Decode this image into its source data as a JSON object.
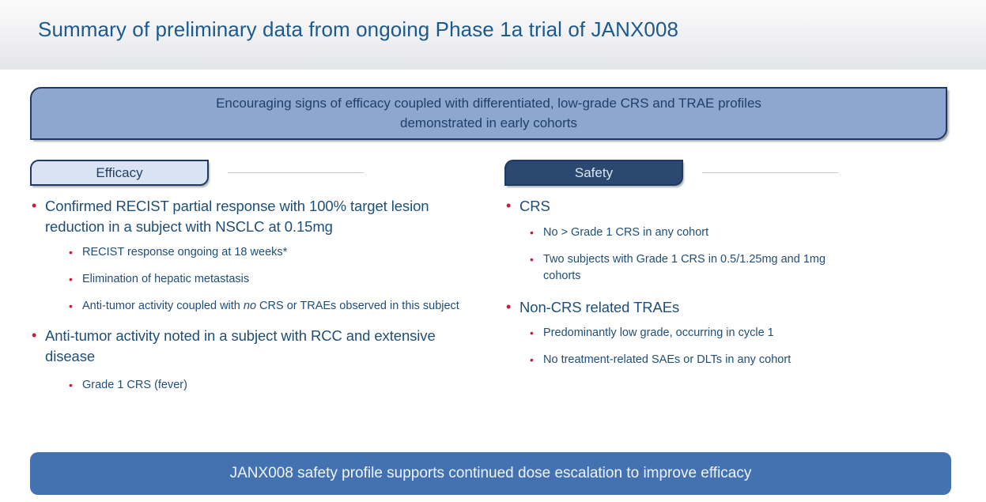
{
  "slide": {
    "title": "Summary of preliminary data from ongoing Phase 1a trial of JANX008",
    "highlight_banner": {
      "line1": "Encouraging signs of efficacy coupled with differentiated, low-grade CRS and TRAE profiles",
      "line2": "demonstrated in early cohorts"
    },
    "efficacy": {
      "header": "Efficacy",
      "items": [
        {
          "level": 1,
          "text": "Confirmed RECIST partial response with 100% target lesion reduction in a subject with NSCLC at 0.15mg"
        },
        {
          "level": 2,
          "text": "RECIST response ongoing at 18 weeks*"
        },
        {
          "level": 2,
          "text": "Elimination of hepatic metastasis"
        },
        {
          "level": 2,
          "text_prefix": "Anti-tumor activity coupled with ",
          "text_italic": "no",
          "text_suffix": " CRS or TRAEs observed in this subject"
        },
        {
          "level": 1,
          "text": "Anti-tumor activity noted in a subject with RCC and extensive disease"
        },
        {
          "level": 2,
          "text": "Grade 1 CRS (fever)"
        }
      ]
    },
    "safety": {
      "header": "Safety",
      "items": [
        {
          "level": 1,
          "text": "CRS"
        },
        {
          "level": 2,
          "text": "No > Grade 1 CRS in any cohort"
        },
        {
          "level": 2,
          "text": "Two subjects with Grade 1 CRS in 0.5/1.25mg and 1mg cohorts"
        },
        {
          "level": 1,
          "text": "Non-CRS related TRAEs"
        },
        {
          "level": 2,
          "text": "Predominantly low grade, occurring in cycle 1"
        },
        {
          "level": 2,
          "text": "No treatment-related SAEs or DLTs in any cohort"
        }
      ]
    },
    "footer_banner": "JANX008 safety profile supports continued dose escalation to improve efficacy"
  },
  "colors": {
    "title_blue": "#1b5a8e",
    "body_navy": "#1f4e79",
    "banner_fill": "#8da7d0",
    "banner_text": "#1f4068",
    "border_navy": "#1f3864",
    "efficacy_fill": "#dae3f3",
    "safety_fill": "#2b4970",
    "safety_text": "#dce6f2",
    "footer_fill": "#4472b0",
    "footer_text": "#eef3f9",
    "bullet_red": "#c41e3a",
    "rule_gray": "#c3cbd8"
  }
}
